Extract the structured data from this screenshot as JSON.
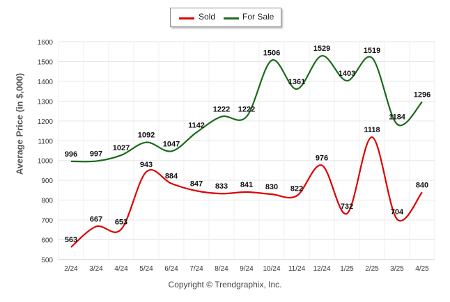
{
  "chart_data": {
    "type": "line",
    "title": "",
    "xlabel": "",
    "ylabel": "Average Price (in $,000)",
    "categories": [
      "2/24",
      "3/24",
      "4/24",
      "5/24",
      "6/24",
      "7/24",
      "8/24",
      "9/24",
      "10/24",
      "11/24",
      "12/24",
      "1/25",
      "2/25",
      "3/25",
      "4/25"
    ],
    "ylim": [
      500,
      1600
    ],
    "yticks": [
      500,
      600,
      700,
      800,
      900,
      1000,
      1100,
      1200,
      1300,
      1400,
      1500,
      1600
    ],
    "grid": true,
    "legend_position": "top-center",
    "series": [
      {
        "name": "Sold",
        "color": "#dd0000",
        "values": [
          563,
          667,
          653,
          943,
          884,
          847,
          833,
          841,
          830,
          822,
          976,
          732,
          1118,
          704,
          840
        ]
      },
      {
        "name": "For Sale",
        "color": "#1a6b1a",
        "values": [
          996,
          997,
          1027,
          1092,
          1047,
          1142,
          1222,
          1222,
          1506,
          1361,
          1529,
          1403,
          1519,
          1184,
          1296
        ]
      }
    ]
  },
  "footer": {
    "copyright": "Copyright © Trendgraphix, Inc."
  }
}
